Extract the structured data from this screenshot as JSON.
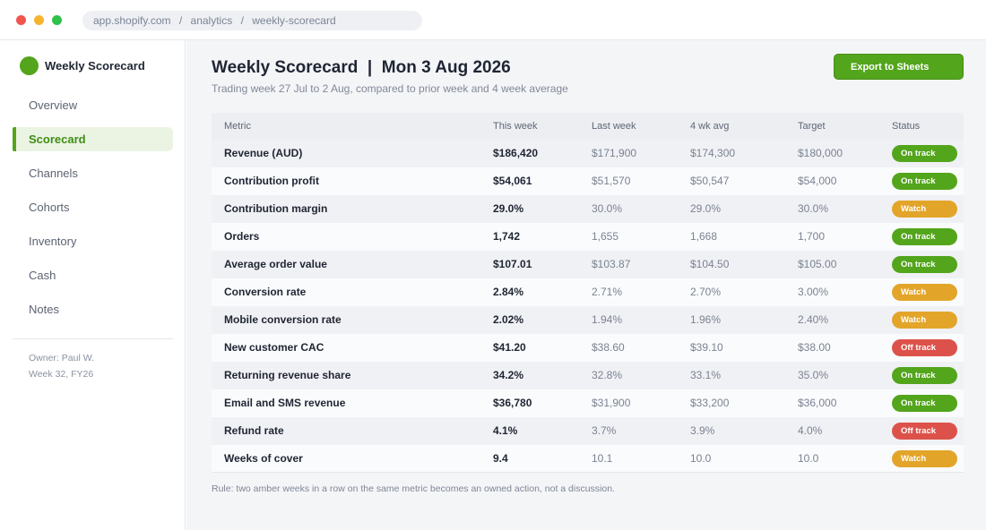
{
  "browser": {
    "url_parts": [
      "app.shopify.com",
      "analytics",
      "weekly-scorecard"
    ],
    "url_separator": "/"
  },
  "sidebar": {
    "brand": "Weekly Scorecard",
    "items": [
      {
        "label": "Overview",
        "active": false
      },
      {
        "label": "Scorecard",
        "active": true
      },
      {
        "label": "Channels",
        "active": false
      },
      {
        "label": "Cohorts",
        "active": false
      },
      {
        "label": "Inventory",
        "active": false
      },
      {
        "label": "Cash",
        "active": false
      },
      {
        "label": "Notes",
        "active": false
      }
    ],
    "owner": "Owner: Paul W.",
    "week": "Week 32, FY26"
  },
  "header": {
    "title": "Weekly Scorecard  |  Mon 3 Aug 2026",
    "subtitle": "Trading week 27 Jul to 2 Aug, compared to prior week and 4 week average",
    "export_label": "Export to Sheets"
  },
  "table": {
    "columns": [
      "Metric",
      "This week",
      "Last week",
      "4 wk avg",
      "Target",
      "Status"
    ],
    "rows": [
      {
        "metric": "Revenue (AUD)",
        "this_week": "$186,420",
        "last_week": "$171,900",
        "avg4": "$174,300",
        "target": "$180,000",
        "status": "On track"
      },
      {
        "metric": "Contribution profit",
        "this_week": "$54,061",
        "last_week": "$51,570",
        "avg4": "$50,547",
        "target": "$54,000",
        "status": "On track"
      },
      {
        "metric": "Contribution margin",
        "this_week": "29.0%",
        "last_week": "30.0%",
        "avg4": "29.0%",
        "target": "30.0%",
        "status": "Watch"
      },
      {
        "metric": "Orders",
        "this_week": "1,742",
        "last_week": "1,655",
        "avg4": "1,668",
        "target": "1,700",
        "status": "On track"
      },
      {
        "metric": "Average order value",
        "this_week": "$107.01",
        "last_week": "$103.87",
        "avg4": "$104.50",
        "target": "$105.00",
        "status": "On track"
      },
      {
        "metric": "Conversion rate",
        "this_week": "2.84%",
        "last_week": "2.71%",
        "avg4": "2.70%",
        "target": "3.00%",
        "status": "Watch"
      },
      {
        "metric": "Mobile conversion rate",
        "this_week": "2.02%",
        "last_week": "1.94%",
        "avg4": "1.96%",
        "target": "2.40%",
        "status": "Watch"
      },
      {
        "metric": "New customer CAC",
        "this_week": "$41.20",
        "last_week": "$38.60",
        "avg4": "$39.10",
        "target": "$38.00",
        "status": "Off track"
      },
      {
        "metric": "Returning revenue share",
        "this_week": "34.2%",
        "last_week": "32.8%",
        "avg4": "33.1%",
        "target": "35.0%",
        "status": "On track"
      },
      {
        "metric": "Email and SMS revenue",
        "this_week": "$36,780",
        "last_week": "$31,900",
        "avg4": "$33,200",
        "target": "$36,000",
        "status": "On track"
      },
      {
        "metric": "Refund rate",
        "this_week": "4.1%",
        "last_week": "3.7%",
        "avg4": "3.9%",
        "target": "4.0%",
        "status": "Off track"
      },
      {
        "metric": "Weeks of cover",
        "this_week": "9.4",
        "last_week": "10.1",
        "avg4": "10.0",
        "target": "10.0",
        "status": "Watch"
      }
    ]
  },
  "status_colors": {
    "On track": "#53a51c",
    "Watch": "#e2a52a",
    "Off track": "#dc524a"
  },
  "footnote": "Rule: two amber weeks in a row on the same metric becomes an owned action, not a discussion."
}
